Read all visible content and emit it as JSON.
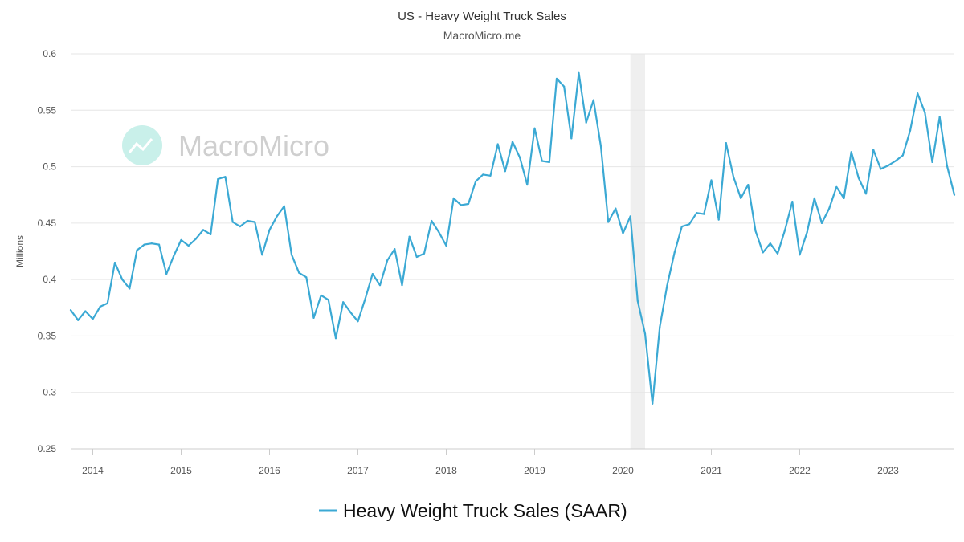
{
  "header": {
    "title": "US - Heavy Weight Truck Sales",
    "subtitle": "MacroMicro.me"
  },
  "watermark": {
    "text": "MacroMicro"
  },
  "colors": {
    "series": "#3ba9d4",
    "recession_band": "#efefef",
    "gridline": "#e6e6e6",
    "watermark_icon": "#c9f0ea"
  },
  "chart_data": {
    "type": "line",
    "title": "US - Heavy Weight Truck Sales",
    "subtitle": "MacroMicro.me",
    "ylabel": "Millions",
    "xlabel": "",
    "ylim": [
      0.25,
      0.6
    ],
    "yticks": [
      "0.25",
      "0.3",
      "0.35",
      "0.4",
      "0.45",
      "0.5",
      "0.55",
      "0.6"
    ],
    "xticks": [
      "2014",
      "2015",
      "2016",
      "2017",
      "2018",
      "2019",
      "2020",
      "2021",
      "2022",
      "2023"
    ],
    "xlim": [
      "2013-10",
      "2023-10"
    ],
    "grid": "horizontal",
    "legend_position": "bottom",
    "shaded_regions": [
      {
        "start": "2020-02",
        "end": "2020-04"
      }
    ],
    "series": [
      {
        "name": "Heavy Weight Truck Sales (SAAR)",
        "x": [
          "2013-10",
          "2013-11",
          "2013-12",
          "2014-01",
          "2014-02",
          "2014-03",
          "2014-04",
          "2014-05",
          "2014-06",
          "2014-07",
          "2014-08",
          "2014-09",
          "2014-10",
          "2014-11",
          "2014-12",
          "2015-01",
          "2015-02",
          "2015-03",
          "2015-04",
          "2015-05",
          "2015-06",
          "2015-07",
          "2015-08",
          "2015-09",
          "2015-10",
          "2015-11",
          "2015-12",
          "2016-01",
          "2016-02",
          "2016-03",
          "2016-04",
          "2016-05",
          "2016-06",
          "2016-07",
          "2016-08",
          "2016-09",
          "2016-10",
          "2016-11",
          "2016-12",
          "2017-01",
          "2017-02",
          "2017-03",
          "2017-04",
          "2017-05",
          "2017-06",
          "2017-07",
          "2017-08",
          "2017-09",
          "2017-10",
          "2017-11",
          "2017-12",
          "2018-01",
          "2018-02",
          "2018-03",
          "2018-04",
          "2018-05",
          "2018-06",
          "2018-07",
          "2018-08",
          "2018-09",
          "2018-10",
          "2018-11",
          "2018-12",
          "2019-01",
          "2019-02",
          "2019-03",
          "2019-04",
          "2019-05",
          "2019-06",
          "2019-07",
          "2019-08",
          "2019-09",
          "2019-10",
          "2019-11",
          "2019-12",
          "2020-01",
          "2020-02",
          "2020-03",
          "2020-04",
          "2020-05",
          "2020-06",
          "2020-07",
          "2020-08",
          "2020-09",
          "2020-10",
          "2020-11",
          "2020-12",
          "2021-01",
          "2021-02",
          "2021-03",
          "2021-04",
          "2021-05",
          "2021-06",
          "2021-07",
          "2021-08",
          "2021-09",
          "2021-10",
          "2021-11",
          "2021-12",
          "2022-01",
          "2022-02",
          "2022-03",
          "2022-04",
          "2022-05",
          "2022-06",
          "2022-07",
          "2022-08",
          "2022-09",
          "2022-10",
          "2022-11",
          "2022-12",
          "2023-01",
          "2023-02",
          "2023-03",
          "2023-04",
          "2023-05",
          "2023-06",
          "2023-07",
          "2023-08",
          "2023-09",
          "2023-10"
        ],
        "values": [
          0.373,
          0.364,
          0.372,
          0.365,
          0.376,
          0.379,
          0.415,
          0.4,
          0.392,
          0.426,
          0.431,
          0.432,
          0.431,
          0.405,
          0.421,
          0.435,
          0.43,
          0.436,
          0.444,
          0.44,
          0.489,
          0.491,
          0.451,
          0.447,
          0.452,
          0.451,
          0.422,
          0.444,
          0.456,
          0.465,
          0.422,
          0.406,
          0.402,
          0.366,
          0.386,
          0.382,
          0.348,
          0.38,
          0.371,
          0.363,
          0.383,
          0.405,
          0.395,
          0.417,
          0.427,
          0.395,
          0.438,
          0.42,
          0.423,
          0.452,
          0.442,
          0.43,
          0.472,
          0.466,
          0.467,
          0.487,
          0.493,
          0.492,
          0.52,
          0.496,
          0.522,
          0.508,
          0.484,
          0.534,
          0.505,
          0.504,
          0.578,
          0.571,
          0.525,
          0.583,
          0.539,
          0.559,
          0.518,
          0.451,
          0.463,
          0.441,
          0.456,
          0.381,
          0.352,
          0.29,
          0.358,
          0.395,
          0.424,
          0.447,
          0.449,
          0.459,
          0.458,
          0.488,
          0.453,
          0.521,
          0.491,
          0.472,
          0.484,
          0.443,
          0.424,
          0.432,
          0.423,
          0.444,
          0.469,
          0.422,
          0.442,
          0.472,
          0.45,
          0.463,
          0.482,
          0.472,
          0.513,
          0.49,
          0.476,
          0.515,
          0.498,
          0.501,
          0.505,
          0.51,
          0.532,
          0.565,
          0.548,
          0.504,
          0.544,
          0.501,
          0.475
        ]
      }
    ]
  }
}
